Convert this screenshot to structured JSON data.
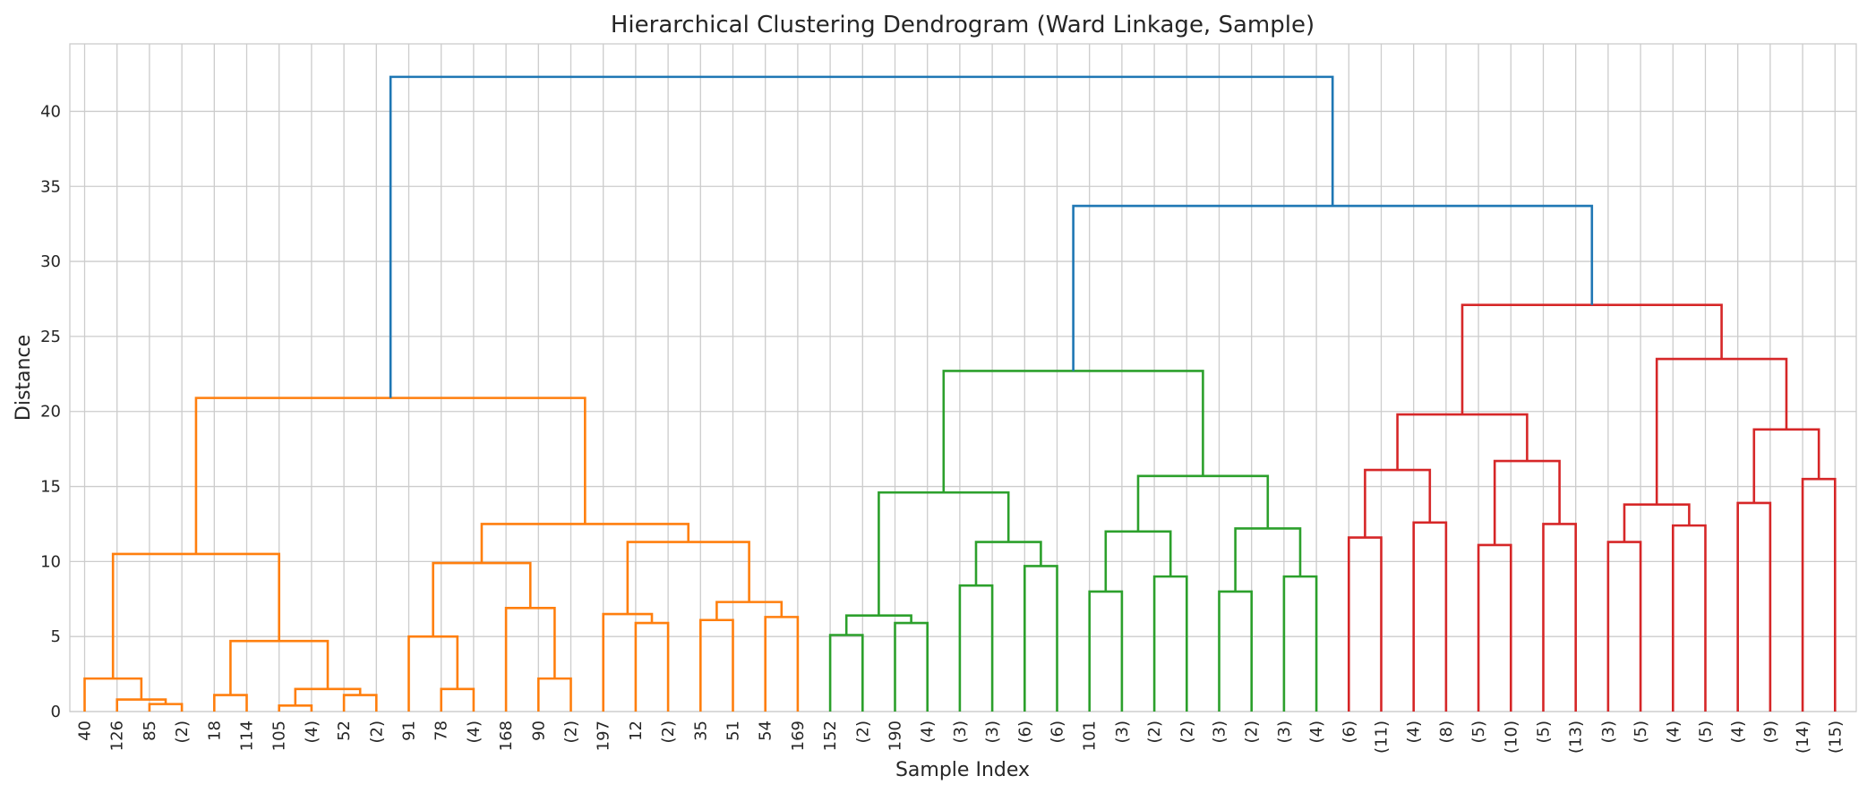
{
  "chart_data": {
    "type": "dendrogram",
    "title": "Hierarchical Clustering Dendrogram (Ward Linkage, Sample)",
    "xlabel": "Sample Index",
    "ylabel": "Distance",
    "ylim": [
      0,
      44.5
    ],
    "yticks": [
      0,
      5,
      10,
      15,
      20,
      25,
      30,
      35,
      40
    ],
    "grid": true,
    "colors": {
      "orange": "#ff7f0e",
      "green": "#2ca02c",
      "red": "#d62728",
      "blue": "#1f77b4"
    },
    "leaves": [
      "40",
      "126",
      "85",
      "(2)",
      "18",
      "114",
      "105",
      "(4)",
      "52",
      "(2)",
      "91",
      "78",
      "(4)",
      "168",
      "90",
      "(2)",
      "197",
      "12",
      "(2)",
      "35",
      "51",
      "54",
      "169",
      "152",
      "(2)",
      "190",
      "(4)",
      "(3)",
      "(3)",
      "(6)",
      "(6)",
      "101",
      "(3)",
      "(2)",
      "(2)",
      "(3)",
      "(2)",
      "(3)",
      "(4)",
      "(6)",
      "(11)",
      "(4)",
      "(8)",
      "(5)",
      "(10)",
      "(5)",
      "(13)",
      "(3)",
      "(5)",
      "(4)",
      "(5)",
      "(4)",
      "(9)",
      "(14)",
      "(15)"
    ],
    "links": [
      {
        "l": 2,
        "r": 3,
        "h": 0.5,
        "c": "orange"
      },
      {
        "l": 1,
        "r": "L0",
        "h": 0.8,
        "c": "orange"
      },
      {
        "l": 0,
        "r": "L1",
        "h": 2.2,
        "c": "orange"
      },
      {
        "l": 4,
        "r": 5,
        "h": 1.1,
        "c": "orange"
      },
      {
        "l": 6,
        "r": 7,
        "h": 0.4,
        "c": "orange"
      },
      {
        "l": 8,
        "r": 9,
        "h": 1.1,
        "c": "orange"
      },
      {
        "l": "L4",
        "r": "L5",
        "h": 1.5,
        "c": "orange"
      },
      {
        "l": "L3",
        "r": "L6",
        "h": 4.7,
        "c": "orange"
      },
      {
        "l": "L2",
        "r": "L7",
        "h": 10.5,
        "c": "orange"
      },
      {
        "l": 11,
        "r": 12,
        "h": 1.5,
        "c": "orange"
      },
      {
        "l": 10,
        "r": "L9",
        "h": 5.0,
        "c": "orange"
      },
      {
        "l": 14,
        "r": 15,
        "h": 2.2,
        "c": "orange"
      },
      {
        "l": 13,
        "r": "L11",
        "h": 6.9,
        "c": "orange"
      },
      {
        "l": "L10",
        "r": "L12",
        "h": 9.9,
        "c": "orange"
      },
      {
        "l": 17,
        "r": 18,
        "h": 5.9,
        "c": "orange"
      },
      {
        "l": 16,
        "r": "L14",
        "h": 6.5,
        "c": "orange"
      },
      {
        "l": 19,
        "r": 20,
        "h": 6.1,
        "c": "orange"
      },
      {
        "l": 21,
        "r": 22,
        "h": 6.3,
        "c": "orange"
      },
      {
        "l": "L16",
        "r": "L17",
        "h": 7.3,
        "c": "orange"
      },
      {
        "l": "L15",
        "r": "L18",
        "h": 11.3,
        "c": "orange"
      },
      {
        "l": "L13",
        "r": "L19",
        "h": 12.5,
        "c": "orange"
      },
      {
        "l": "L8",
        "r": "L20",
        "h": 20.9,
        "c": "orange"
      },
      {
        "l": 23,
        "r": 24,
        "h": 5.1,
        "c": "green"
      },
      {
        "l": 25,
        "r": 26,
        "h": 5.9,
        "c": "green"
      },
      {
        "l": "L22",
        "r": "L23",
        "h": 6.4,
        "c": "green"
      },
      {
        "l": 27,
        "r": 28,
        "h": 8.4,
        "c": "green"
      },
      {
        "l": 29,
        "r": 30,
        "h": 9.7,
        "c": "green"
      },
      {
        "l": "L25",
        "r": "L26",
        "h": 11.3,
        "c": "green"
      },
      {
        "l": "L24",
        "r": "L27",
        "h": 14.6,
        "c": "green"
      },
      {
        "l": 31,
        "r": 32,
        "h": 8.0,
        "c": "green"
      },
      {
        "l": 33,
        "r": 34,
        "h": 9.0,
        "c": "green"
      },
      {
        "l": "L29",
        "r": "L30",
        "h": 12.0,
        "c": "green"
      },
      {
        "l": 35,
        "r": 36,
        "h": 8.0,
        "c": "green"
      },
      {
        "l": 37,
        "r": 38,
        "h": 9.0,
        "c": "green"
      },
      {
        "l": "L32",
        "r": "L33",
        "h": 12.2,
        "c": "green"
      },
      {
        "l": "L31",
        "r": "L34",
        "h": 15.7,
        "c": "green"
      },
      {
        "l": "L28",
        "r": "L35",
        "h": 22.7,
        "c": "green"
      },
      {
        "l": 39,
        "r": 40,
        "h": 11.6,
        "c": "red"
      },
      {
        "l": 41,
        "r": 42,
        "h": 12.6,
        "c": "red"
      },
      {
        "l": "L37",
        "r": "L38",
        "h": 16.1,
        "c": "red"
      },
      {
        "l": 43,
        "r": 44,
        "h": 11.1,
        "c": "red"
      },
      {
        "l": 45,
        "r": 46,
        "h": 12.5,
        "c": "red"
      },
      {
        "l": "L40",
        "r": "L41",
        "h": 16.7,
        "c": "red"
      },
      {
        "l": "L39",
        "r": "L42",
        "h": 19.8,
        "c": "red"
      },
      {
        "l": 47,
        "r": 48,
        "h": 11.3,
        "c": "red"
      },
      {
        "l": 49,
        "r": 50,
        "h": 12.4,
        "c": "red"
      },
      {
        "l": "L44",
        "r": "L45",
        "h": 13.8,
        "c": "red"
      },
      {
        "l": 51,
        "r": 52,
        "h": 13.9,
        "c": "red"
      },
      {
        "l": 53,
        "r": 54,
        "h": 15.5,
        "c": "red"
      },
      {
        "l": "L47",
        "r": "L48",
        "h": 18.8,
        "c": "red"
      },
      {
        "l": "L46",
        "r": "L49",
        "h": 23.5,
        "c": "red"
      },
      {
        "l": "L43",
        "r": "L50",
        "h": 27.1,
        "c": "red"
      },
      {
        "l": "L36",
        "r": "L51",
        "h": 33.7,
        "c": "blue"
      },
      {
        "l": "L21",
        "r": "L52",
        "h": 42.3,
        "c": "blue"
      }
    ]
  }
}
